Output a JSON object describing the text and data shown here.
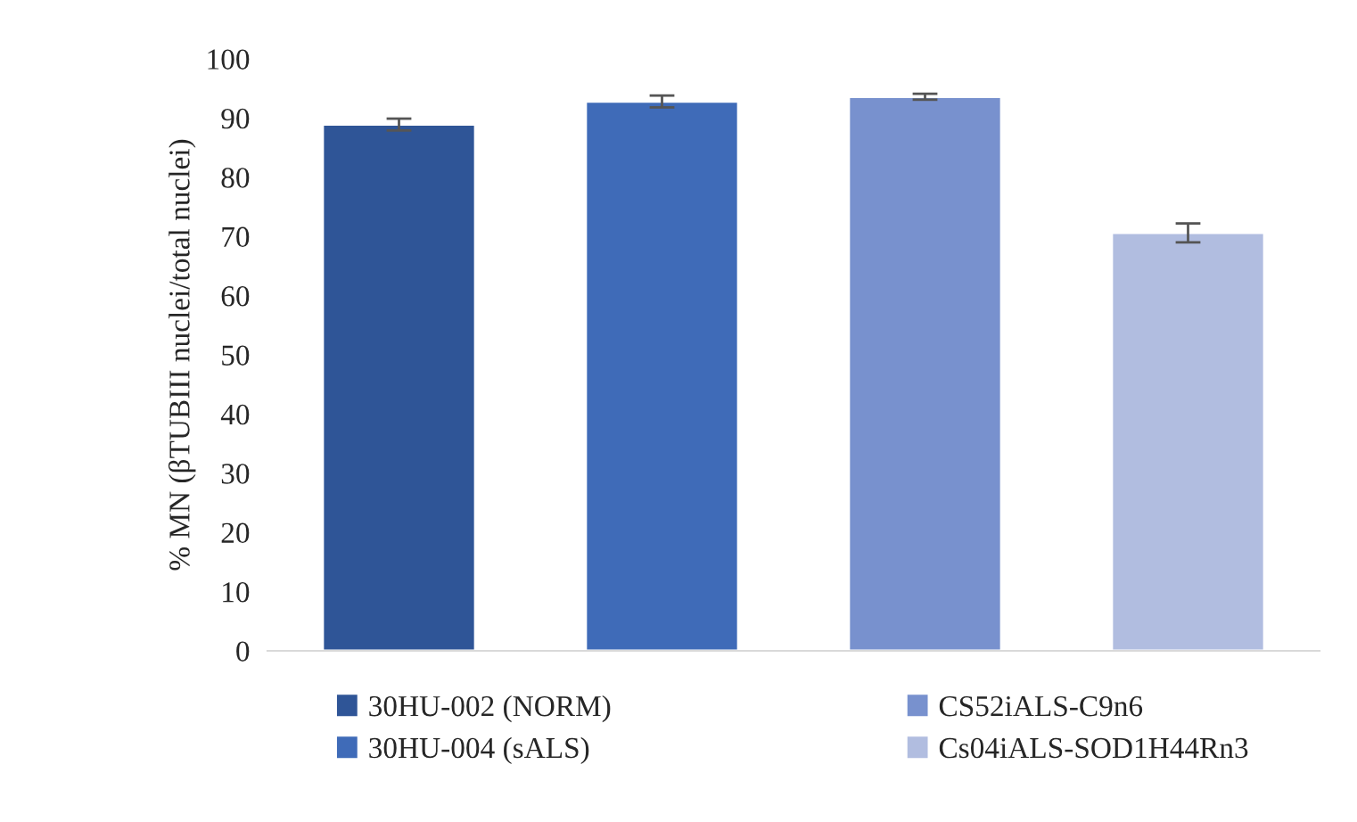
{
  "chart_data": {
    "type": "bar",
    "ylabel": "% MN (βTUBIII nuclei/total nuclei)",
    "categories": [
      null
    ],
    "series": [
      {
        "name": "30HU-002 (NORM)",
        "color": "#2f5597",
        "values": [
          88.9
        ],
        "errors": [
          1.0
        ]
      },
      {
        "name": "30HU-004 (sALS)",
        "color": "#3f6bb8",
        "values": [
          92.8
        ],
        "errors": [
          1.0
        ]
      },
      {
        "name": "CS52iALS-C9n6",
        "color": "#7891ce",
        "values": [
          93.6
        ],
        "errors": [
          0.5
        ]
      },
      {
        "name": "Cs04iALS-SOD1H44Rn3",
        "color": "#b1bde0",
        "values": [
          70.6
        ],
        "errors": [
          1.6
        ]
      }
    ],
    "ylim": [
      0,
      100
    ],
    "yticks": [
      0,
      10,
      20,
      30,
      40,
      50,
      60,
      70,
      80,
      90,
      100
    ],
    "grid": false,
    "legend": "bottom"
  }
}
